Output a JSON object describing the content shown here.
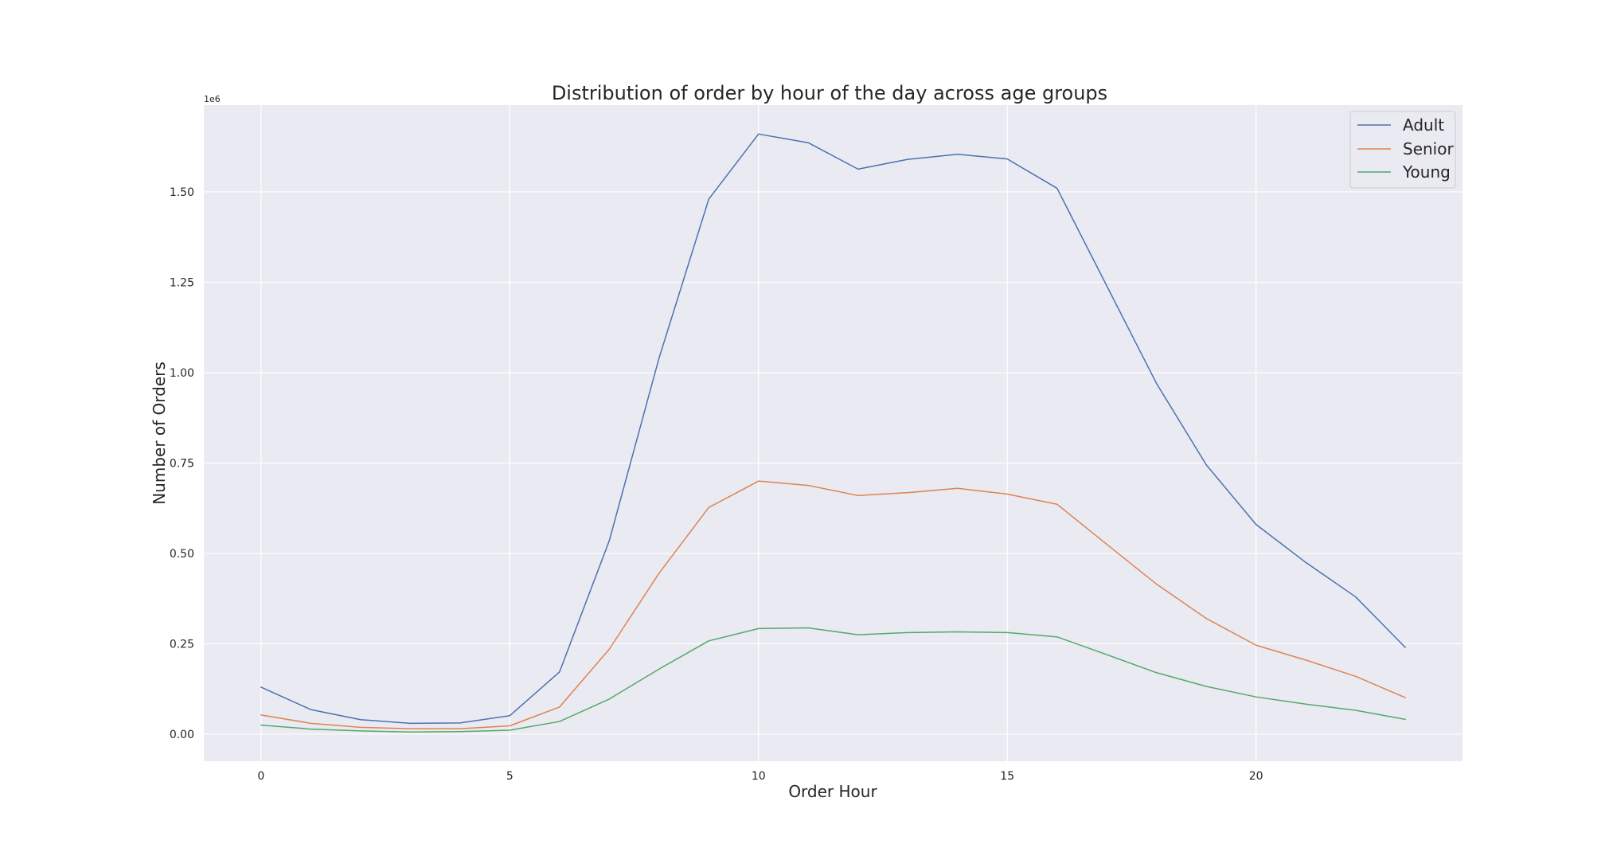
{
  "chart_data": {
    "type": "line",
    "title": "Distribution of order by hour of the day across age groups",
    "xlabel": "Order Hour",
    "ylabel": "Number of Orders",
    "y_offset_text": "1e6",
    "xlim": [
      -1.15,
      24.15
    ],
    "ylim": [
      -0.075,
      1.74
    ],
    "x_ticks": [
      0,
      5,
      10,
      15,
      20
    ],
    "y_ticks": [
      0.0,
      0.25,
      0.5,
      0.75,
      1.0,
      1.25,
      1.5
    ],
    "y_tick_labels": [
      "0.00",
      "0.25",
      "0.50",
      "0.75",
      "1.00",
      "1.25",
      "1.50"
    ],
    "grid": true,
    "legend_position": "upper right",
    "x": [
      0,
      1,
      2,
      3,
      4,
      5,
      6,
      7,
      8,
      9,
      10,
      11,
      12,
      13,
      14,
      15,
      16,
      17,
      18,
      19,
      20,
      21,
      22,
      23
    ],
    "series": [
      {
        "name": "Adult",
        "color": "#4c72b0",
        "values": [
          0.13,
          0.068,
          0.04,
          0.03,
          0.031,
          0.051,
          0.172,
          0.535,
          1.04,
          1.48,
          1.66,
          1.636,
          1.563,
          1.59,
          1.604,
          1.591,
          1.51,
          1.24,
          0.97,
          0.745,
          0.58,
          0.475,
          0.38,
          0.24
        ]
      },
      {
        "name": "Senior",
        "color": "#dd8452",
        "values": [
          0.053,
          0.03,
          0.019,
          0.015,
          0.015,
          0.023,
          0.075,
          0.235,
          0.445,
          0.627,
          0.7,
          0.688,
          0.66,
          0.668,
          0.68,
          0.664,
          0.636,
          0.525,
          0.415,
          0.32,
          0.246,
          0.205,
          0.16,
          0.101
        ]
      },
      {
        "name": "Young",
        "color": "#55a868",
        "values": [
          0.025,
          0.014,
          0.009,
          0.006,
          0.007,
          0.011,
          0.035,
          0.097,
          0.18,
          0.258,
          0.292,
          0.294,
          0.275,
          0.281,
          0.283,
          0.281,
          0.269,
          0.22,
          0.17,
          0.132,
          0.103,
          0.083,
          0.066,
          0.041
        ]
      }
    ]
  }
}
